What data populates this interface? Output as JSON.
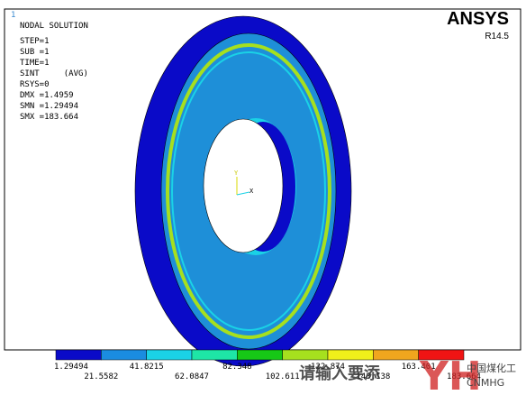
{
  "header": {
    "index": "1",
    "title": "NODAL SOLUTION",
    "brand": "ANSYS",
    "version": "R14.5"
  },
  "info": [
    "STEP=1",
    "SUB =1",
    "TIME=1",
    "SINT     (AVG)",
    "RSYS=0",
    "DMX =1.4959",
    "SMN =1.29494",
    "SMX =183.664"
  ],
  "legend": {
    "labels": [
      "1.29494",
      "21.5582",
      "41.8215",
      "62.0847",
      "82.348",
      "102.611",
      "122.874",
      "143.138",
      "163.401",
      "183.664"
    ],
    "colors": [
      "#0a0ac8",
      "#1a8ce0",
      "#1ad2e6",
      "#1ee6a6",
      "#16c816",
      "#a6e01e",
      "#f0f01a",
      "#f0a61e",
      "#f01414"
    ]
  },
  "triad": {
    "y": "Y",
    "x": "X"
  },
  "watermark": {
    "text": "请输入要添",
    "logo": "中国煤化工",
    "logo_sub": "CNMHG"
  }
}
